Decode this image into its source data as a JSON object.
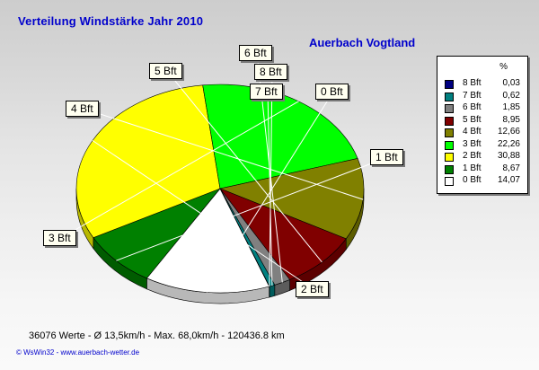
{
  "title": "Verteilung Windstärke  Jahr 2010",
  "station": "Auerbach Vogtland",
  "footer": "36076 Werte   -   Ø 13,5km/h  -  Max. 68,0km/h   -  120436.8 km",
  "credit": "© WsWin32  -  www.auerbach-wetter.de",
  "legend_header": "%",
  "chart_data": {
    "type": "pie",
    "title": "Verteilung Windstärke  Jahr 2010",
    "legend_placement": "right",
    "slices": [
      {
        "label": "0 Bft",
        "value": 14.07,
        "value_text": "14,07",
        "color": "#ffffff"
      },
      {
        "label": "1 Bft",
        "value": 8.67,
        "value_text": "8,67",
        "color": "#008000"
      },
      {
        "label": "2 Bft",
        "value": 30.88,
        "value_text": "30,88",
        "color": "#ffff00"
      },
      {
        "label": "3 Bft",
        "value": 22.26,
        "value_text": "22,26",
        "color": "#00ff00"
      },
      {
        "label": "4 Bft",
        "value": 12.66,
        "value_text": "12,66",
        "color": "#808000"
      },
      {
        "label": "5 Bft",
        "value": 8.95,
        "value_text": "8,95",
        "color": "#800000"
      },
      {
        "label": "6 Bft",
        "value": 1.85,
        "value_text": "1,85",
        "color": "#808080"
      },
      {
        "label": "7 Bft",
        "value": 0.62,
        "value_text": "0,62",
        "color": "#008080"
      },
      {
        "label": "8 Bft",
        "value": 0.03,
        "value_text": "0,03",
        "color": "#000080"
      }
    ],
    "legend_order": [
      "8 Bft",
      "7 Bft",
      "6 Bft",
      "5 Bft",
      "4 Bft",
      "3 Bft",
      "2 Bft",
      "1 Bft",
      "0 Bft"
    ]
  }
}
